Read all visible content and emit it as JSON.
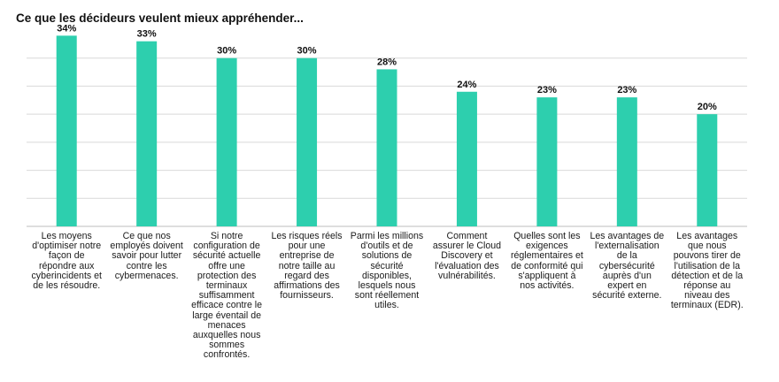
{
  "title": "Ce que les décideurs veulent mieux appréhender...",
  "chart_data": {
    "type": "bar",
    "title": "Ce que les décideurs veulent mieux appréhender...",
    "xlabel": "",
    "ylabel": "",
    "ylim": [
      0,
      35
    ],
    "grid": true,
    "bar_color": "#2dcfae",
    "grid_color": "#d9d9d9",
    "categories": [
      "Les moyens d'optimiser notre façon de répondre aux cyberincidents et de les résoudre.",
      "Ce que nos employés doivent savoir pour lutter contre les cybermenaces.",
      "Si notre configuration de sécurité actuelle offre une protection des terminaux suffisamment efficace contre le large éventail de menaces auxquelles nous sommes confrontés.",
      "Les risques réels pour une entreprise de notre taille au regard des affirmations des fournisseurs.",
      "Parmi les millions d'outils et de solutions de sécurité disponibles, lesquels nous sont réellement utiles.",
      "Comment assurer le Cloud Discovery et l'évaluation des vulnérabilités.",
      "Quelles sont les exigences réglementaires et de conformité qui s'appliquent à nos activités.",
      "Les avantages de l'externalisation de la cybersécurité auprès d'un expert en sécurité externe.",
      "Les avantages que nous pouvons tirer de l'utilisation de la détection et de la réponse au niveau des terminaux (EDR)."
    ],
    "values": [
      34,
      33,
      30,
      30,
      28,
      24,
      23,
      23,
      20
    ],
    "data_labels": [
      "34%",
      "33%",
      "30%",
      "30%",
      "28%",
      "24%",
      "23%",
      "23%",
      "20%"
    ]
  }
}
